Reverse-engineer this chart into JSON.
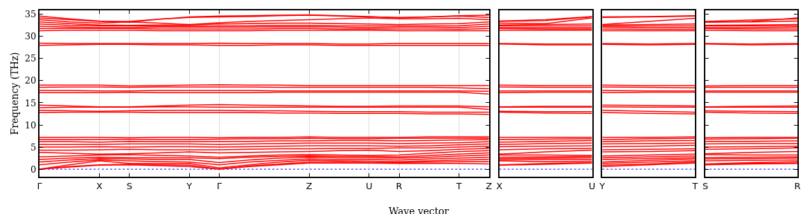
{
  "chart_data": [
    {
      "type": "line",
      "xlabel": "Wave vector",
      "ylabel": "Frequency (THz)",
      "categories": [
        "Γ",
        null,
        "X",
        "S",
        null,
        "Y",
        "Γ",
        null,
        null,
        "Z",
        null,
        "U",
        "R",
        null,
        "T",
        "Z"
      ],
      "ylim": [
        -1.7,
        35.9
      ],
      "yticks": [
        0,
        5,
        10,
        15,
        20,
        25,
        30,
        35
      ],
      "grid": "x",
      "ref_lines": [
        {
          "axis": "y",
          "value": 0,
          "color": "#0000ff",
          "line_style": "dotted"
        }
      ],
      "series": [
        {
          "color": "#ff0000",
          "values": [
            0,
            0.5,
            0.9,
            1.0,
            0.8,
            0.6,
            0,
            0.6,
            1.0,
            1.4,
            1.4,
            1.4,
            1.3,
            1.3,
            1.3,
            1.2
          ]
        },
        {
          "color": "#ff0000",
          "values": [
            0,
            0.6,
            1.0,
            1.1,
            1.0,
            0.9,
            0,
            0.7,
            1.2,
            1.6,
            1.6,
            1.5,
            1.5,
            1.6,
            1.7,
            1.7
          ]
        },
        {
          "color": "#ff0000",
          "values": [
            0,
            1.0,
            1.9,
            1.3,
            1.3,
            1.3,
            0.3,
            1.0,
            1.6,
            2.0,
            1.9,
            1.8,
            1.7,
            1.9,
            2.1,
            2.2
          ]
        },
        {
          "color": "#ff0000",
          "values": [
            1.0,
            1.6,
            2.1,
            1.9,
            1.7,
            1.6,
            1.0,
            1.6,
            2.0,
            2.3,
            2.2,
            2.2,
            2.1,
            2.3,
            2.5,
            2.7
          ]
        },
        {
          "color": "#ff0000",
          "values": [
            1.6,
            2.1,
            2.4,
            2.3,
            2.2,
            2.2,
            1.5,
            2.1,
            2.5,
            2.7,
            2.6,
            2.6,
            2.5,
            2.7,
            3.0,
            3.2
          ]
        },
        {
          "color": "#ff0000",
          "values": [
            2.2,
            2.5,
            2.7,
            2.6,
            2.6,
            2.6,
            2.4,
            2.7,
            2.9,
            3.0,
            2.9,
            2.9,
            2.8,
            3.1,
            3.4,
            3.7
          ]
        },
        {
          "color": "#ff0000",
          "values": [
            2.8,
            3.0,
            3.2,
            3.3,
            3.1,
            3.0,
            2.7,
            3.0,
            3.2,
            3.3,
            3.2,
            3.1,
            3.2,
            3.6,
            4.0,
            4.2
          ]
        },
        {
          "color": "#ff0000",
          "values": [
            3.8,
            3.6,
            3.4,
            3.5,
            3.7,
            3.9,
            3.7,
            3.8,
            3.9,
            4.0,
            4.2,
            4.3,
            4.0,
            4.2,
            4.5,
            4.7
          ]
        },
        {
          "color": "#ff0000",
          "values": [
            4.3,
            4.3,
            4.4,
            4.5,
            4.4,
            4.4,
            4.4,
            4.5,
            4.6,
            4.6,
            4.7,
            4.7,
            4.8,
            4.8,
            5.0,
            5.2
          ]
        },
        {
          "color": "#ff0000",
          "values": [
            5.0,
            5.0,
            5.1,
            5.0,
            5.1,
            5.1,
            5.0,
            5.1,
            5.2,
            5.3,
            5.3,
            5.3,
            5.2,
            5.3,
            5.5,
            5.7
          ]
        },
        {
          "color": "#ff0000",
          "values": [
            5.6,
            5.6,
            5.6,
            5.7,
            5.7,
            5.7,
            5.6,
            5.7,
            5.8,
            5.9,
            5.9,
            5.9,
            5.8,
            5.9,
            6.0,
            6.2
          ]
        },
        {
          "color": "#ff0000",
          "values": [
            6.2,
            6.2,
            6.1,
            6.3,
            6.2,
            6.2,
            6.2,
            6.3,
            6.4,
            6.4,
            6.5,
            6.5,
            6.4,
            6.5,
            6.6,
            6.7
          ]
        },
        {
          "color": "#ff0000",
          "values": [
            6.7,
            6.7,
            6.7,
            6.8,
            6.7,
            6.7,
            6.8,
            6.9,
            6.9,
            7.0,
            6.9,
            6.9,
            7.0,
            7.0,
            7.0,
            7.0
          ]
        },
        {
          "color": "#ff0000",
          "values": [
            7.2,
            7.2,
            7.2,
            7.1,
            7.2,
            7.2,
            7.1,
            7.2,
            7.2,
            7.3,
            7.2,
            7.2,
            7.2,
            7.3,
            7.3,
            7.3
          ]
        },
        {
          "color": "#ff0000",
          "values": [
            12.8,
            12.9,
            12.9,
            12.9,
            12.8,
            12.8,
            12.8,
            12.8,
            12.7,
            12.7,
            12.6,
            12.6,
            12.6,
            12.5,
            12.5,
            12.4
          ]
        },
        {
          "color": "#ff0000",
          "values": [
            13.3,
            13.2,
            13.1,
            13.2,
            13.3,
            13.3,
            13.3,
            13.2,
            13.2,
            13.1,
            13.0,
            13.0,
            13.0,
            12.9,
            12.9,
            12.9
          ]
        },
        {
          "color": "#ff0000",
          "values": [
            13.9,
            14.0,
            14.0,
            14.0,
            14.1,
            14.1,
            14.0,
            14.0,
            14.0,
            14.0,
            14.0,
            14.0,
            14.0,
            14.0,
            14.0,
            13.5
          ]
        },
        {
          "color": "#ff0000",
          "values": [
            14.5,
            14.3,
            14.1,
            14.1,
            14.3,
            14.5,
            14.6,
            14.5,
            14.4,
            14.3,
            14.2,
            14.2,
            14.3,
            14.3,
            14.3,
            14.1
          ]
        },
        {
          "color": "#ff0000",
          "values": [
            17.3,
            17.3,
            17.3,
            17.4,
            17.3,
            17.3,
            17.3,
            17.3,
            17.4,
            17.4,
            17.4,
            17.4,
            17.4,
            17.4,
            17.4,
            17.0
          ]
        },
        {
          "color": "#ff0000",
          "values": [
            17.8,
            17.8,
            17.7,
            17.7,
            17.8,
            17.8,
            17.8,
            17.8,
            17.7,
            17.7,
            17.7,
            17.7,
            17.7,
            17.7,
            17.7,
            17.6
          ]
        },
        {
          "color": "#ff0000",
          "values": [
            18.5,
            18.6,
            18.6,
            18.5,
            18.6,
            18.6,
            18.6,
            18.6,
            18.5,
            18.5,
            18.5,
            18.5,
            18.5,
            18.5,
            18.4,
            18.2
          ]
        },
        {
          "color": "#ff0000",
          "values": [
            19.0,
            19.0,
            19.0,
            18.8,
            18.9,
            19.0,
            19.1,
            19.0,
            19.0,
            18.9,
            18.9,
            18.9,
            18.9,
            18.9,
            18.9,
            18.9
          ]
        },
        {
          "color": "#ff0000",
          "values": [
            28.0,
            28.1,
            28.2,
            28.2,
            28.1,
            28.1,
            28.0,
            28.0,
            28.1,
            28.1,
            28.0,
            28.0,
            28.0,
            28.0,
            28.0,
            28.0
          ]
        },
        {
          "color": "#ff0000",
          "values": [
            28.5,
            28.4,
            28.4,
            28.4,
            28.4,
            28.4,
            28.5,
            28.4,
            28.4,
            28.4,
            28.3,
            28.3,
            28.4,
            28.4,
            28.4,
            28.4
          ]
        },
        {
          "color": "#ff0000",
          "values": [
            31.3,
            31.4,
            31.4,
            31.4,
            31.3,
            31.3,
            31.3,
            31.3,
            31.4,
            31.4,
            31.4,
            31.4,
            31.3,
            31.3,
            31.3,
            31.3
          ]
        },
        {
          "color": "#ff0000",
          "values": [
            31.8,
            31.8,
            31.8,
            31.8,
            31.7,
            31.7,
            31.7,
            31.7,
            31.8,
            31.8,
            31.7,
            31.7,
            31.7,
            31.7,
            31.6,
            31.8
          ]
        },
        {
          "color": "#ff0000",
          "values": [
            32.3,
            32.1,
            32.0,
            32.0,
            32.1,
            32.1,
            32.1,
            32.1,
            32.2,
            32.2,
            32.1,
            32.0,
            32.1,
            32.1,
            32.0,
            32.3
          ]
        },
        {
          "color": "#ff0000",
          "values": [
            32.8,
            32.5,
            32.4,
            32.4,
            32.3,
            32.3,
            32.4,
            32.4,
            32.5,
            32.5,
            32.4,
            32.4,
            32.4,
            32.4,
            32.4,
            32.8
          ]
        },
        {
          "color": "#ff0000",
          "values": [
            33.3,
            32.9,
            32.6,
            32.5,
            32.6,
            32.6,
            32.8,
            32.9,
            33.0,
            33.0,
            32.9,
            32.8,
            32.7,
            32.8,
            32.9,
            33.3
          ]
        },
        {
          "color": "#ff0000",
          "values": [
            33.8,
            33.3,
            33.0,
            33.3,
            33.0,
            32.7,
            33.1,
            33.4,
            33.6,
            33.8,
            34.0,
            34.2,
            34.0,
            34.0,
            34.1,
            33.8
          ]
        },
        {
          "color": "#ff0000",
          "values": [
            34.2,
            33.8,
            33.4,
            33.4,
            33.9,
            34.3,
            34.4,
            34.5,
            34.7,
            34.8,
            34.6,
            34.4,
            34.3,
            34.4,
            34.6,
            34.3
          ]
        },
        {
          "color": "#ff0000",
          "values": [
            34.6,
            34.0,
            33.5,
            33.2,
            33.9,
            34.4,
            34.6,
            34.7,
            34.8,
            34.9,
            34.7,
            34.5,
            34.2,
            34.4,
            34.7,
            34.8
          ]
        }
      ]
    },
    {
      "type": "line",
      "categories": [
        "X",
        null,
        "U"
      ],
      "ylim": [
        -1.7,
        35.9
      ],
      "yticks": [
        0,
        5,
        10,
        15,
        20,
        25,
        30,
        35
      ],
      "tick_labels": "x",
      "ref_lines": [
        {
          "axis": "y",
          "value": 0,
          "color": "#0000ff",
          "line_style": "dotted"
        }
      ],
      "series": [
        {
          "color": "#ff0000",
          "values": [
            0.9,
            1.1,
            1.4
          ]
        },
        {
          "color": "#ff0000",
          "values": [
            1.0,
            1.3,
            1.5
          ]
        },
        {
          "color": "#ff0000",
          "values": [
            1.9,
            1.7,
            1.8
          ]
        },
        {
          "color": "#ff0000",
          "values": [
            2.1,
            2.2,
            2.2
          ]
        },
        {
          "color": "#ff0000",
          "values": [
            2.4,
            2.5,
            2.6
          ]
        },
        {
          "color": "#ff0000",
          "values": [
            2.7,
            2.8,
            2.9
          ]
        },
        {
          "color": "#ff0000",
          "values": [
            3.2,
            3.2,
            3.1
          ]
        },
        {
          "color": "#ff0000",
          "values": [
            3.4,
            3.9,
            4.3
          ]
        },
        {
          "color": "#ff0000",
          "values": [
            4.4,
            4.6,
            4.7
          ]
        },
        {
          "color": "#ff0000",
          "values": [
            5.1,
            5.2,
            5.3
          ]
        },
        {
          "color": "#ff0000",
          "values": [
            5.6,
            5.8,
            5.9
          ]
        },
        {
          "color": "#ff0000",
          "values": [
            6.1,
            6.3,
            6.5
          ]
        },
        {
          "color": "#ff0000",
          "values": [
            6.7,
            6.8,
            6.9
          ]
        },
        {
          "color": "#ff0000",
          "values": [
            7.2,
            7.2,
            7.2
          ]
        },
        {
          "color": "#ff0000",
          "values": [
            12.9,
            12.7,
            12.6
          ]
        },
        {
          "color": "#ff0000",
          "values": [
            13.1,
            13.0,
            13.0
          ]
        },
        {
          "color": "#ff0000",
          "values": [
            14.0,
            14.0,
            14.0
          ]
        },
        {
          "color": "#ff0000",
          "values": [
            14.1,
            14.2,
            14.2
          ]
        },
        {
          "color": "#ff0000",
          "values": [
            17.3,
            17.4,
            17.4
          ]
        },
        {
          "color": "#ff0000",
          "values": [
            17.7,
            17.7,
            17.7
          ]
        },
        {
          "color": "#ff0000",
          "values": [
            18.6,
            18.5,
            18.5
          ]
        },
        {
          "color": "#ff0000",
          "values": [
            19.0,
            18.9,
            18.9
          ]
        },
        {
          "color": "#ff0000",
          "values": [
            28.3,
            28.1,
            28.1
          ]
        },
        {
          "color": "#ff0000",
          "values": [
            28.4,
            28.3,
            28.3
          ]
        },
        {
          "color": "#ff0000",
          "values": [
            31.4,
            31.4,
            31.4
          ]
        },
        {
          "color": "#ff0000",
          "values": [
            31.8,
            31.7,
            31.7
          ]
        },
        {
          "color": "#ff0000",
          "values": [
            32.0,
            32.0,
            32.0
          ]
        },
        {
          "color": "#ff0000",
          "values": [
            32.4,
            32.4,
            32.4
          ]
        },
        {
          "color": "#ff0000",
          "values": [
            32.6,
            32.7,
            32.8
          ]
        },
        {
          "color": "#ff0000",
          "values": [
            33.0,
            32.9,
            34.2
          ]
        },
        {
          "color": "#ff0000",
          "values": [
            33.4,
            33.6,
            34.4
          ]
        },
        {
          "color": "#ff0000",
          "values": [
            33.5,
            33.8,
            34.5
          ]
        }
      ]
    },
    {
      "type": "line",
      "categories": [
        "Y",
        null,
        "T"
      ],
      "ylim": [
        -1.7,
        35.9
      ],
      "yticks": [
        0,
        5,
        10,
        15,
        20,
        25,
        30,
        35
      ],
      "tick_labels": "x",
      "ref_lines": [
        {
          "axis": "y",
          "value": 0,
          "color": "#0000ff",
          "line_style": "dotted"
        }
      ],
      "series": [
        {
          "color": "#ff0000",
          "values": [
            0.6,
            1.0,
            1.4
          ]
        },
        {
          "color": "#ff0000",
          "values": [
            0.9,
            1.2,
            1.6
          ]
        },
        {
          "color": "#ff0000",
          "values": [
            1.3,
            1.6,
            1.9
          ]
        },
        {
          "color": "#ff0000",
          "values": [
            1.6,
            2.0,
            2.3
          ]
        },
        {
          "color": "#ff0000",
          "values": [
            2.2,
            2.4,
            2.6
          ]
        },
        {
          "color": "#ff0000",
          "values": [
            2.6,
            2.8,
            3.0
          ]
        },
        {
          "color": "#ff0000",
          "values": [
            3.0,
            3.2,
            3.4
          ]
        },
        {
          "color": "#ff0000",
          "values": [
            3.9,
            4.0,
            4.2
          ]
        },
        {
          "color": "#ff0000",
          "values": [
            4.4,
            4.5,
            4.6
          ]
        },
        {
          "color": "#ff0000",
          "values": [
            5.1,
            5.2,
            5.4
          ]
        },
        {
          "color": "#ff0000",
          "values": [
            5.7,
            5.8,
            5.9
          ]
        },
        {
          "color": "#ff0000",
          "values": [
            6.2,
            6.4,
            6.5
          ]
        },
        {
          "color": "#ff0000",
          "values": [
            6.7,
            6.9,
            7.0
          ]
        },
        {
          "color": "#ff0000",
          "values": [
            7.2,
            7.2,
            7.3
          ]
        },
        {
          "color": "#ff0000",
          "values": [
            12.8,
            12.6,
            12.5
          ]
        },
        {
          "color": "#ff0000",
          "values": [
            13.3,
            13.1,
            12.9
          ]
        },
        {
          "color": "#ff0000",
          "values": [
            14.1,
            14.0,
            14.0
          ]
        },
        {
          "color": "#ff0000",
          "values": [
            14.5,
            14.4,
            14.3
          ]
        },
        {
          "color": "#ff0000",
          "values": [
            17.3,
            17.4,
            17.4
          ]
        },
        {
          "color": "#ff0000",
          "values": [
            17.8,
            17.7,
            17.7
          ]
        },
        {
          "color": "#ff0000",
          "values": [
            18.6,
            18.5,
            18.4
          ]
        },
        {
          "color": "#ff0000",
          "values": [
            19.0,
            18.9,
            18.9
          ]
        },
        {
          "color": "#ff0000",
          "values": [
            28.2,
            28.1,
            28.2
          ]
        },
        {
          "color": "#ff0000",
          "values": [
            28.4,
            28.3,
            28.4
          ]
        },
        {
          "color": "#ff0000",
          "values": [
            31.3,
            31.3,
            31.3
          ]
        },
        {
          "color": "#ff0000",
          "values": [
            31.7,
            31.6,
            31.6
          ]
        },
        {
          "color": "#ff0000",
          "values": [
            32.1,
            32.0,
            32.0
          ]
        },
        {
          "color": "#ff0000",
          "values": [
            32.3,
            32.4,
            32.4
          ]
        },
        {
          "color": "#ff0000",
          "values": [
            32.6,
            32.7,
            32.8
          ]
        },
        {
          "color": "#ff0000",
          "values": [
            32.7,
            33.4,
            34.1
          ]
        },
        {
          "color": "#ff0000",
          "values": [
            34.3,
            34.4,
            34.6
          ]
        },
        {
          "color": "#ff0000",
          "values": [
            34.4,
            34.5,
            34.7
          ]
        }
      ]
    },
    {
      "type": "line",
      "categories": [
        "S",
        null,
        "R"
      ],
      "ylim": [
        -1.7,
        35.9
      ],
      "yticks": [
        0,
        5,
        10,
        15,
        20,
        25,
        30,
        35
      ],
      "tick_labels": "x",
      "ref_lines": [
        {
          "axis": "y",
          "value": 0,
          "color": "#0000ff",
          "line_style": "dotted"
        }
      ],
      "series": [
        {
          "color": "#ff0000",
          "values": [
            1.0,
            1.2,
            1.3
          ]
        },
        {
          "color": "#ff0000",
          "values": [
            1.1,
            1.3,
            1.4
          ]
        },
        {
          "color": "#ff0000",
          "values": [
            1.2,
            1.5,
            1.7
          ]
        },
        {
          "color": "#ff0000",
          "values": [
            1.9,
            2.0,
            2.1
          ]
        },
        {
          "color": "#ff0000",
          "values": [
            2.3,
            2.4,
            2.5
          ]
        },
        {
          "color": "#ff0000",
          "values": [
            2.6,
            2.7,
            2.8
          ]
        },
        {
          "color": "#ff0000",
          "values": [
            3.3,
            3.2,
            3.2
          ]
        },
        {
          "color": "#ff0000",
          "values": [
            3.5,
            3.8,
            4.0
          ]
        },
        {
          "color": "#ff0000",
          "values": [
            4.5,
            4.6,
            4.8
          ]
        },
        {
          "color": "#ff0000",
          "values": [
            5.0,
            5.1,
            5.2
          ]
        },
        {
          "color": "#ff0000",
          "values": [
            5.7,
            5.8,
            5.8
          ]
        },
        {
          "color": "#ff0000",
          "values": [
            6.3,
            6.3,
            6.4
          ]
        },
        {
          "color": "#ff0000",
          "values": [
            6.8,
            6.9,
            7.0
          ]
        },
        {
          "color": "#ff0000",
          "values": [
            7.1,
            7.2,
            7.2
          ]
        },
        {
          "color": "#ff0000",
          "values": [
            12.9,
            12.7,
            12.6
          ]
        },
        {
          "color": "#ff0000",
          "values": [
            13.2,
            13.1,
            13.0
          ]
        },
        {
          "color": "#ff0000",
          "values": [
            14.0,
            14.0,
            14.0
          ]
        },
        {
          "color": "#ff0000",
          "values": [
            14.1,
            14.2,
            14.3
          ]
        },
        {
          "color": "#ff0000",
          "values": [
            17.4,
            17.4,
            17.4
          ]
        },
        {
          "color": "#ff0000",
          "values": [
            17.7,
            17.7,
            17.7
          ]
        },
        {
          "color": "#ff0000",
          "values": [
            18.5,
            18.5,
            18.5
          ]
        },
        {
          "color": "#ff0000",
          "values": [
            18.8,
            18.9,
            18.9
          ]
        },
        {
          "color": "#ff0000",
          "values": [
            28.3,
            28.1,
            28.2
          ]
        },
        {
          "color": "#ff0000",
          "values": [
            28.4,
            28.3,
            28.4
          ]
        },
        {
          "color": "#ff0000",
          "values": [
            31.4,
            31.3,
            31.3
          ]
        },
        {
          "color": "#ff0000",
          "values": [
            31.8,
            31.7,
            31.7
          ]
        },
        {
          "color": "#ff0000",
          "values": [
            32.0,
            32.0,
            32.1
          ]
        },
        {
          "color": "#ff0000",
          "values": [
            32.4,
            32.4,
            32.4
          ]
        },
        {
          "color": "#ff0000",
          "values": [
            32.5,
            32.6,
            32.7
          ]
        },
        {
          "color": "#ff0000",
          "values": [
            33.3,
            33.3,
            33.5
          ]
        },
        {
          "color": "#ff0000",
          "values": [
            33.4,
            33.7,
            34.0
          ]
        },
        {
          "color": "#ff0000",
          "values": [
            33.2,
            33.4,
            34.2
          ]
        }
      ]
    }
  ]
}
